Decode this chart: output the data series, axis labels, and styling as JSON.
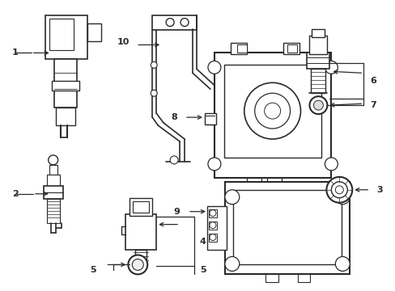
{
  "background_color": "#ffffff",
  "line_color": "#2a2a2a",
  "line_width": 1.0,
  "label_color": "#000000",
  "figsize": [
    4.89,
    3.6
  ],
  "dpi": 100,
  "label_fontsize": 8.0
}
